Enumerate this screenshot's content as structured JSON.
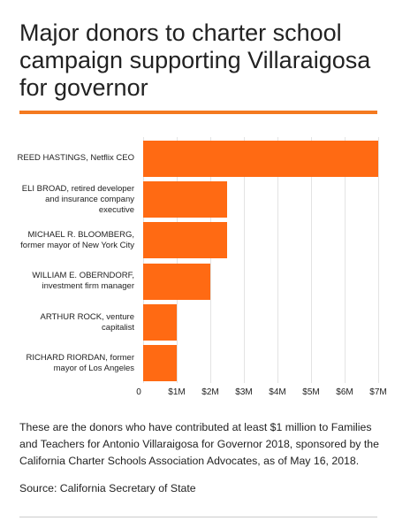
{
  "chart_data": {
    "type": "barh",
    "title": "Major donors to charter school campaign supporting Villaraigosa for governor",
    "categories": [
      "REED HASTINGS, Netflix CEO",
      "ELI BROAD, retired developer and insurance company executive",
      "MICHAEL R. BLOOMBERG, former mayor of New York City",
      "WILLIAM E. OBERNDORF, investment firm manager",
      "ARTHUR ROCK, venture capitalist",
      "RICHARD RIORDAN, former mayor of Los Angeles"
    ],
    "values": [
      7000000,
      2500000,
      2500000,
      2000000,
      1000000,
      1000000
    ],
    "color": "#ff6a13",
    "xlim": [
      0,
      7000000
    ],
    "xticks": [
      0,
      {
        "value": 1000000,
        "label": "$1M"
      },
      {
        "value": 2000000,
        "label": "$2M"
      },
      {
        "value": 3000000,
        "label": "$3M"
      },
      {
        "value": 4000000,
        "label": "$4M"
      },
      {
        "value": 5000000,
        "label": "$5M"
      },
      {
        "value": 6000000,
        "label": "$6M"
      },
      {
        "value": 7000000,
        "label": "$7M"
      }
    ],
    "grid": true,
    "note": "These are the donors who have contributed at least $1 million to Families and Teachers for Antonio Villaraigosa for Governor 2018, sponsored by the California Charter Schools Association Advocates, as of May 16, 2018.",
    "source": "Source: California Secretary of State"
  }
}
